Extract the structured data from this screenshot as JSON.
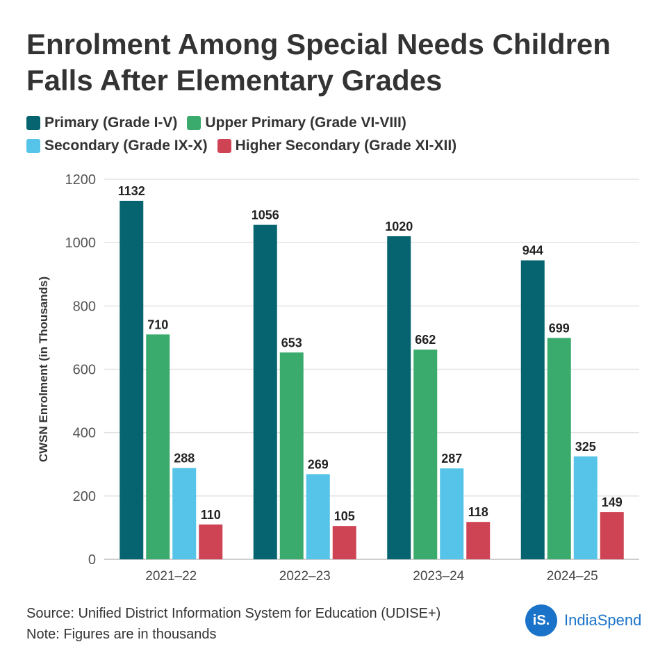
{
  "colors": {
    "primary": "#05646F",
    "upper_primary": "#3AAA6D",
    "secondary": "#56C4E8",
    "higher_secondary": "#CF4455",
    "brand": "#1A73C9"
  },
  "chart_data": {
    "type": "bar",
    "title": "Enrolment Among Special Needs Children Falls After Elementary Grades",
    "xlabel": "",
    "ylabel": "CWSN Enrolment (in Thousands)",
    "ylim": [
      0,
      1200
    ],
    "yticks": [
      "0",
      "200",
      "400",
      "600",
      "800",
      "1000",
      "1200"
    ],
    "categories": [
      "2021–22",
      "2022–23",
      "2023–24",
      "2024–25"
    ],
    "series": [
      {
        "name": "Primary (Grade I-V)",
        "values": [
          1132,
          1056,
          1020,
          944
        ],
        "color": "#05646F"
      },
      {
        "name": "Upper Primary (Grade VI-VIII)",
        "values": [
          710,
          653,
          662,
          699
        ],
        "color": "#3AAA6D"
      },
      {
        "name": "Secondary (Grade IX-X)",
        "values": [
          288,
          269,
          287,
          325
        ],
        "color": "#56C4E8"
      },
      {
        "name": "Higher Secondary (Grade XI-XII)",
        "values": [
          110,
          105,
          118,
          149
        ],
        "color": "#CF4455"
      }
    ],
    "legend": "top",
    "grid": true
  },
  "footer": {
    "source": "Source: Unified District Information System for Education (UDISE+)",
    "note": "Note: Figures are in thousands"
  },
  "brand": {
    "mark": "iS.",
    "name": "IndiaSpend"
  }
}
